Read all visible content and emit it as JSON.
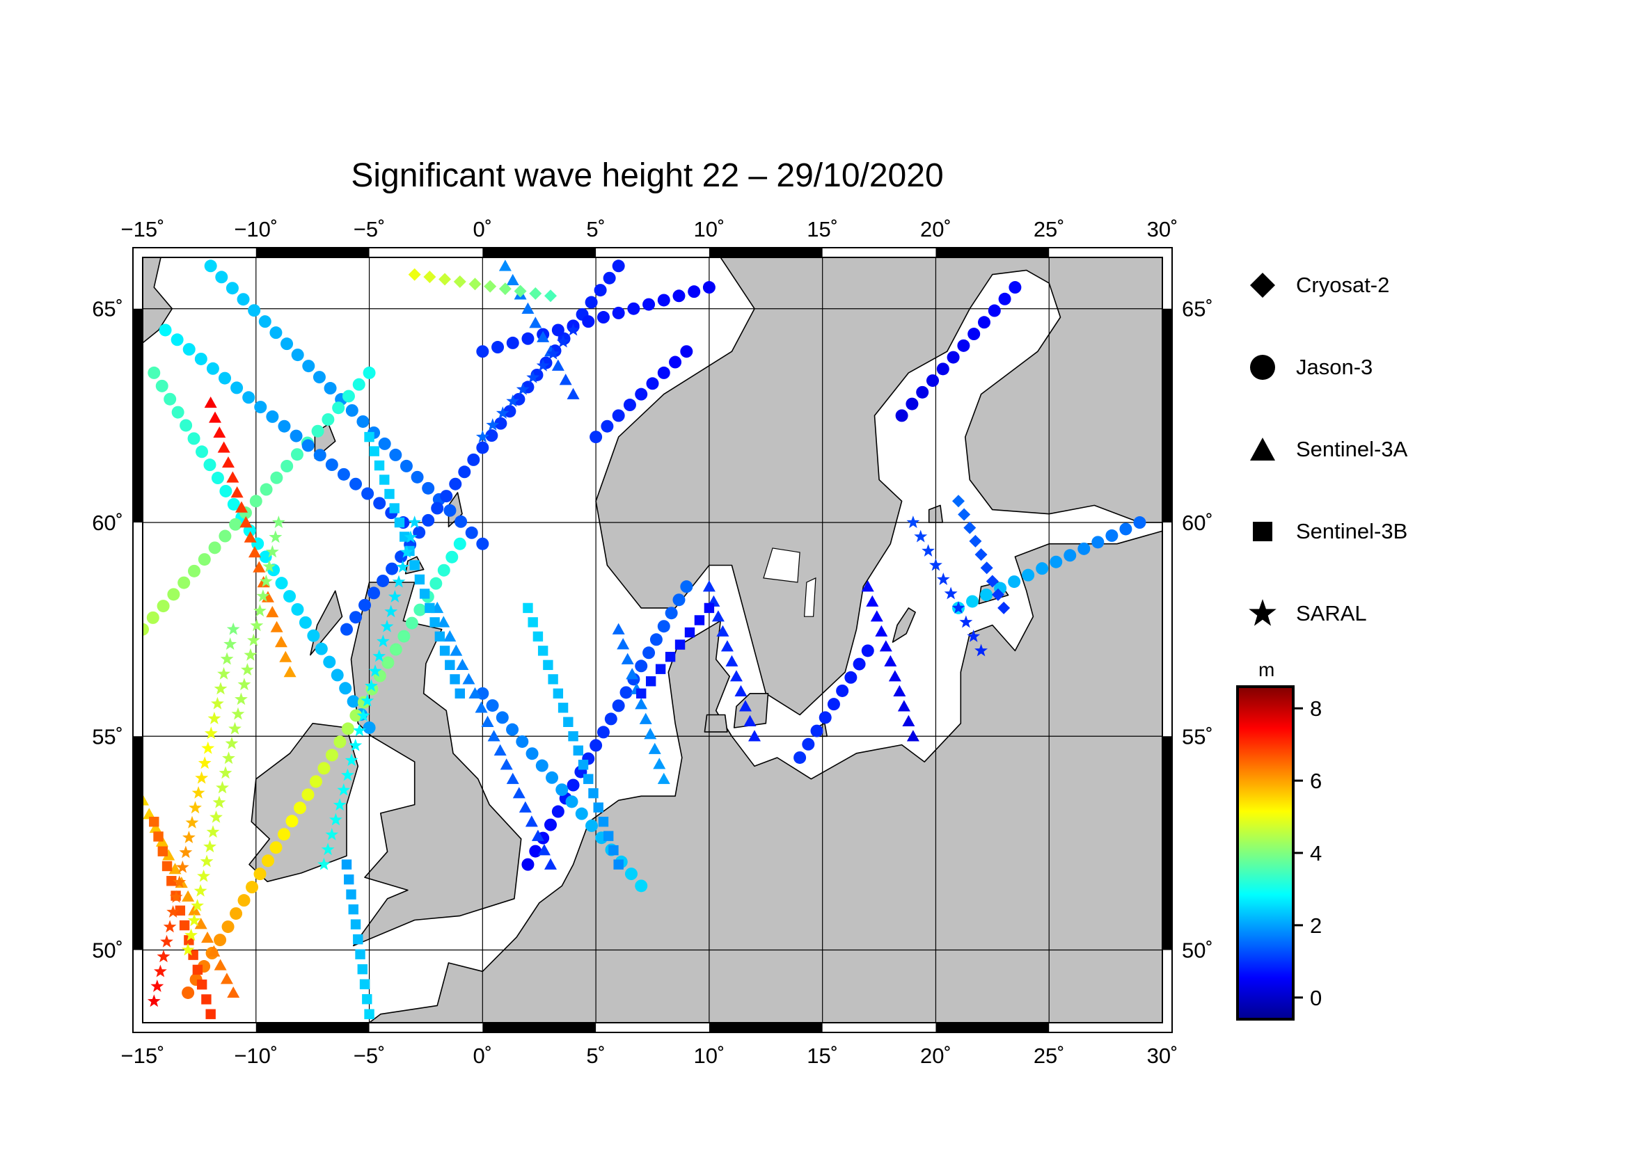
{
  "title": "Significant wave height 22 – 29/10/2020",
  "map": {
    "lon_range": [
      -15,
      30
    ],
    "lat_range": [
      48.3,
      66.2
    ],
    "lon_ticks": [
      -15,
      -10,
      -5,
      0,
      5,
      10,
      15,
      20,
      25,
      30
    ],
    "lon_tick_labels": [
      "−15˚",
      "−10˚",
      "−5˚",
      "0˚",
      "5˚",
      "10˚",
      "15˚",
      "20˚",
      "25˚",
      "30˚"
    ],
    "lat_ticks": [
      50,
      55,
      60,
      65
    ],
    "lat_tick_labels": [
      "50˚",
      "55˚",
      "60˚",
      "65˚"
    ],
    "grid": true,
    "land_color": "#c0c0c0",
    "sea_color": "#ffffff"
  },
  "legend": {
    "items": [
      {
        "label": "Cryosat-2",
        "symbol": "diamond-icon"
      },
      {
        "label": "Jason-3",
        "symbol": "circle-icon"
      },
      {
        "label": "Sentinel-3A",
        "symbol": "triangle-icon"
      },
      {
        "label": "Sentinel-3B",
        "symbol": "square-icon"
      },
      {
        "label": "SARAL",
        "symbol": "star-icon"
      }
    ]
  },
  "colorbar": {
    "unit": "m",
    "min": -0.6,
    "max": 8.6,
    "ticks": [
      0,
      2,
      4,
      6,
      8
    ],
    "tick_labels": [
      "0",
      "2",
      "4",
      "6",
      "8"
    ],
    "colormap": "jet"
  },
  "chart_data": {
    "type": "scatter",
    "title": "Significant wave height 22 – 29/10/2020",
    "value_label": "m",
    "value_range": [
      -0.6,
      8.6
    ],
    "series": [
      {
        "name": "Jason-3",
        "marker": "circle",
        "tracks": [
          {
            "from": [
              -14.5,
              63.5
            ],
            "to": [
              -5,
              55.2
            ],
            "v0": 3.5,
            "v1": 2.0
          },
          {
            "from": [
              -12,
              66
            ],
            "to": [
              0,
              59.5
            ],
            "v0": 2.5,
            "v1": 1.2
          },
          {
            "from": [
              -15,
              57.5
            ],
            "to": [
              -5,
              63.5
            ],
            "v0": 4.5,
            "v1": 3.0
          },
          {
            "from": [
              -13,
              49
            ],
            "to": [
              -1,
              59.5
            ],
            "v0": 6.5,
            "v1": 3.0
          },
          {
            "from": [
              -6,
              57.5
            ],
            "to": [
              6,
              66
            ],
            "v0": 1.3,
            "v1": 0.8
          },
          {
            "from": [
              0,
              64
            ],
            "to": [
              10,
              65.5
            ],
            "v0": 1.0,
            "v1": 0.5
          },
          {
            "from": [
              2,
              52
            ],
            "to": [
              9,
              58.5
            ],
            "v0": 0.5,
            "v1": 1.5
          },
          {
            "from": [
              0,
              56
            ],
            "to": [
              7,
              51.5
            ],
            "v0": 1.5,
            "v1": 2.5
          },
          {
            "from": [
              5,
              62
            ],
            "to": [
              9,
              64
            ],
            "v0": 1.0,
            "v1": 0.5
          },
          {
            "from": [
              14,
              54.5
            ],
            "to": [
              17,
              57
            ],
            "v0": 1.0,
            "v1": 0.7
          },
          {
            "from": [
              21,
              58
            ],
            "to": [
              29,
              60
            ],
            "v0": 2.5,
            "v1": 1.5
          },
          {
            "from": [
              18.5,
              62.5
            ],
            "to": [
              23.5,
              65.5
            ],
            "v0": 0.3,
            "v1": 0.6
          },
          {
            "from": [
              -3.5,
              60
            ],
            "to": [
              -14,
              64.5
            ],
            "v0": 1.0,
            "v1": 2.8
          }
        ]
      },
      {
        "name": "Sentinel-3A",
        "marker": "triangle",
        "tracks": [
          {
            "from": [
              -12,
              62.8
            ],
            "to": [
              -8.5,
              56.5
            ],
            "v0": 7.5,
            "v1": 6.0
          },
          {
            "from": [
              -15,
              53.5
            ],
            "to": [
              -11,
              49
            ],
            "v0": 5.5,
            "v1": 6.5
          },
          {
            "from": [
              -2,
              58
            ],
            "to": [
              3,
              52
            ],
            "v0": 2.0,
            "v1": 1.0
          },
          {
            "from": [
              6,
              57.5
            ],
            "to": [
              8,
              54
            ],
            "v0": 1.5,
            "v1": 2.0
          },
          {
            "from": [
              10,
              58.5
            ],
            "to": [
              12,
              55
            ],
            "v0": 1.0,
            "v1": 0.8
          },
          {
            "from": [
              17,
              58.5
            ],
            "to": [
              19,
              55
            ],
            "v0": 0.6,
            "v1": 0.3
          },
          {
            "from": [
              4,
              63
            ],
            "to": [
              1,
              66
            ],
            "v0": 1.2,
            "v1": 1.8
          }
        ]
      },
      {
        "name": "Sentinel-3B",
        "marker": "square",
        "tracks": [
          {
            "from": [
              -14.5,
              53
            ],
            "to": [
              -12,
              48.5
            ],
            "v0": 6.5,
            "v1": 7.0
          },
          {
            "from": [
              -5,
              62
            ],
            "to": [
              -1,
              56
            ],
            "v0": 2.5,
            "v1": 2.0
          },
          {
            "from": [
              2,
              58
            ],
            "to": [
              6,
              52
            ],
            "v0": 2.5,
            "v1": 1.8
          },
          {
            "from": [
              -6,
              52
            ],
            "to": [
              -5,
              48.5
            ],
            "v0": 2.0,
            "v1": 2.5
          },
          {
            "from": [
              7,
              56
            ],
            "to": [
              10,
              58
            ],
            "v0": 0.8,
            "v1": 0.6
          }
        ]
      },
      {
        "name": "SARAL",
        "marker": "star",
        "tracks": [
          {
            "from": [
              -14.5,
              48.8
            ],
            "to": [
              -11,
              57.5
            ],
            "v0": 7.5,
            "v1": 4.0
          },
          {
            "from": [
              -13,
              50
            ],
            "to": [
              -9,
              60
            ],
            "v0": 5.0,
            "v1": 4.0
          },
          {
            "from": [
              -7,
              52
            ],
            "to": [
              -3,
              60
            ],
            "v0": 3.0,
            "v1": 2.5
          },
          {
            "from": [
              0,
              62
            ],
            "to": [
              4,
              64.5
            ],
            "v0": 1.5,
            "v1": 1.0
          },
          {
            "from": [
              19,
              60
            ],
            "to": [
              22,
              57
            ],
            "v0": 1.2,
            "v1": 0.9
          }
        ]
      },
      {
        "name": "Cryosat-2",
        "marker": "diamond",
        "tracks": [
          {
            "from": [
              21,
              60.5
            ],
            "to": [
              23,
              58
            ],
            "v0": 1.5,
            "v1": 1.0
          },
          {
            "from": [
              -3,
              65.8
            ],
            "to": [
              3,
              65.3
            ],
            "v0": 5.0,
            "v1": 3.5
          }
        ]
      }
    ]
  }
}
